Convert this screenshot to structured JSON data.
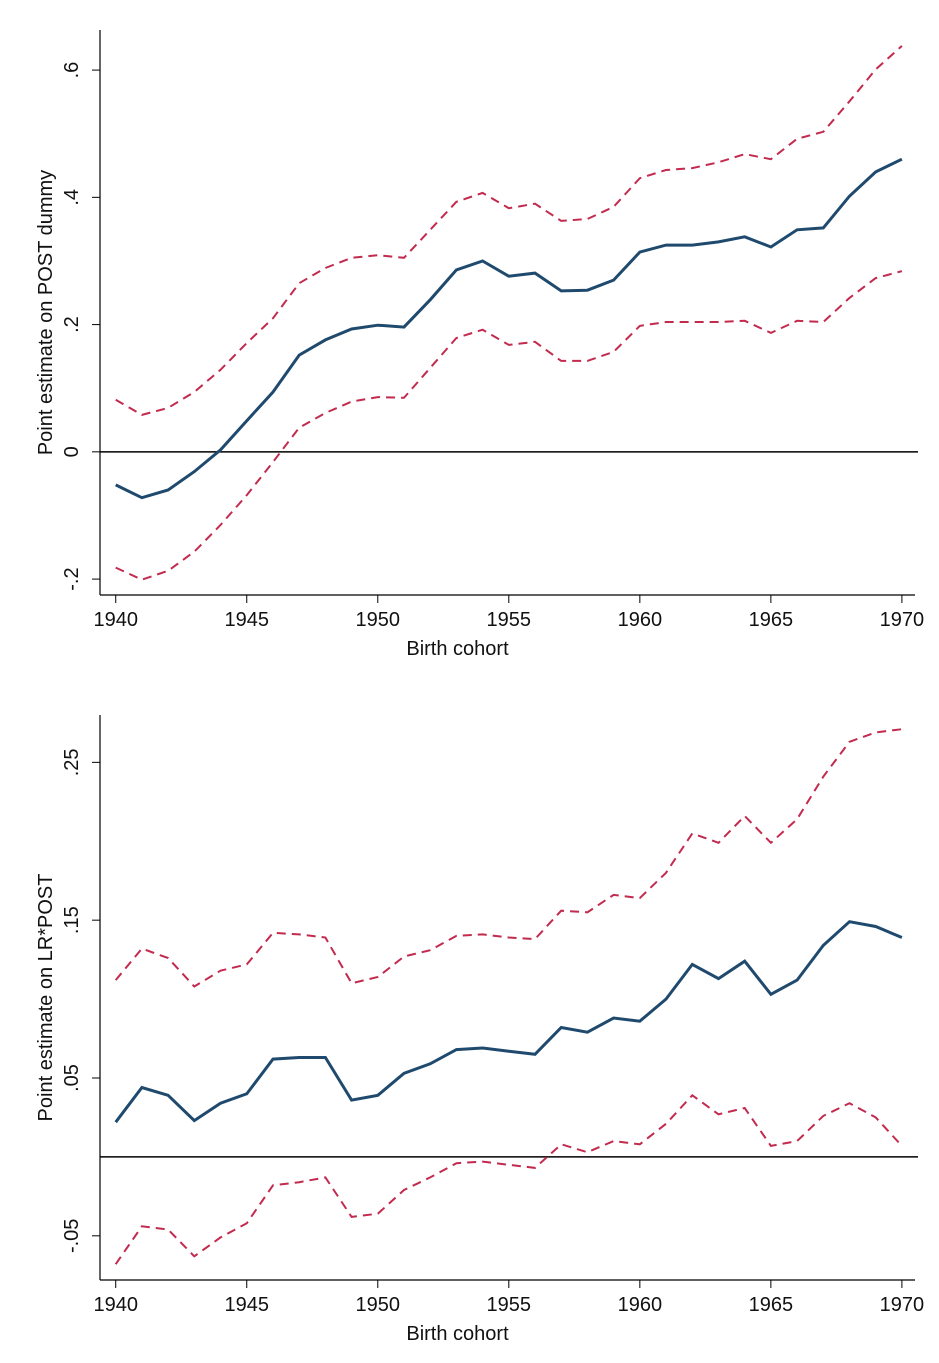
{
  "chart_data": [
    {
      "type": "line",
      "x": [
        1940,
        1941,
        1942,
        1943,
        1944,
        1945,
        1946,
        1947,
        1948,
        1949,
        1950,
        1951,
        1952,
        1953,
        1954,
        1955,
        1956,
        1957,
        1958,
        1959,
        1960,
        1961,
        1962,
        1963,
        1964,
        1965,
        1966,
        1967,
        1968,
        1969,
        1970
      ],
      "xlabel": "Birth cohort",
      "ylabel": "Point estimate on POST dummy",
      "xlim": [
        1939.4,
        1970.5
      ],
      "xticks": [
        1940,
        1945,
        1950,
        1955,
        1960,
        1965,
        1970
      ],
      "ylim": [
        -0.225,
        0.663
      ],
      "yticks": [
        {
          "value": -0.2,
          "label": "-.2"
        },
        0,
        {
          "value": 0.2,
          "label": ".2"
        },
        {
          "value": 0.4,
          "label": ".4"
        },
        {
          "value": 0.6,
          "label": ".6"
        }
      ],
      "reference_line": 0,
      "series": [
        {
          "color": "#1f4a6e",
          "style": "solid",
          "values": [
            -0.052,
            -0.072,
            -0.06,
            -0.031,
            0.003,
            0.049,
            0.094,
            0.152,
            0.176,
            0.193,
            0.199,
            0.196,
            0.239,
            0.286,
            0.3,
            0.276,
            0.281,
            0.253,
            0.254,
            0.27,
            0.314,
            0.325,
            0.325,
            0.33,
            0.338,
            0.322,
            0.349,
            0.352,
            0.402,
            0.44,
            0.46
          ]
        },
        {
          "color": "#c22a4e",
          "style": "dashed",
          "values": [
            0.082,
            0.058,
            0.069,
            0.094,
            0.129,
            0.171,
            0.21,
            0.265,
            0.289,
            0.305,
            0.309,
            0.305,
            0.349,
            0.393,
            0.407,
            0.383,
            0.39,
            0.363,
            0.366,
            0.385,
            0.43,
            0.443,
            0.446,
            0.455,
            0.468,
            0.46,
            0.492,
            0.503,
            0.551,
            0.601,
            0.638
          ]
        },
        {
          "color": "#c22a4e",
          "style": "dashed",
          "values": [
            -0.182,
            -0.201,
            -0.187,
            -0.157,
            -0.115,
            -0.068,
            -0.016,
            0.038,
            0.061,
            0.079,
            0.086,
            0.085,
            0.132,
            0.179,
            0.192,
            0.168,
            0.173,
            0.143,
            0.143,
            0.157,
            0.198,
            0.204,
            0.204,
            0.204,
            0.206,
            0.187,
            0.206,
            0.204,
            0.242,
            0.273,
            0.284
          ]
        }
      ]
    },
    {
      "type": "line",
      "x": [
        1940,
        1941,
        1942,
        1943,
        1944,
        1945,
        1946,
        1947,
        1948,
        1949,
        1950,
        1951,
        1952,
        1953,
        1954,
        1955,
        1956,
        1957,
        1958,
        1959,
        1960,
        1961,
        1962,
        1963,
        1964,
        1965,
        1966,
        1967,
        1968,
        1969,
        1970
      ],
      "xlabel": "Birth cohort",
      "ylabel": "Point estimate on LR*POST",
      "xlim": [
        1939.4,
        1970.5
      ],
      "xticks": [
        1940,
        1945,
        1950,
        1955,
        1960,
        1965,
        1970
      ],
      "ylim": [
        -0.078,
        0.28
      ],
      "yticks": [
        {
          "value": -0.05,
          "label": "-.05"
        },
        {
          "value": 0.05,
          "label": ".05"
        },
        {
          "value": 0.15,
          "label": ".15"
        },
        {
          "value": 0.25,
          "label": ".25"
        }
      ],
      "reference_line": 0,
      "series": [
        {
          "color": "#1f4a6e",
          "style": "solid",
          "values": [
            0.022,
            0.044,
            0.039,
            0.023,
            0.034,
            0.04,
            0.062,
            0.063,
            0.063,
            0.036,
            0.039,
            0.053,
            0.059,
            0.068,
            0.069,
            0.067,
            0.065,
            0.082,
            0.079,
            0.088,
            0.086,
            0.1,
            0.122,
            0.113,
            0.124,
            0.103,
            0.112,
            0.134,
            0.149,
            0.146,
            0.139
          ]
        },
        {
          "color": "#c22a4e",
          "style": "dashed",
          "values": [
            0.112,
            0.132,
            0.126,
            0.108,
            0.118,
            0.122,
            0.142,
            0.141,
            0.139,
            0.11,
            0.114,
            0.127,
            0.131,
            0.14,
            0.141,
            0.139,
            0.138,
            0.156,
            0.155,
            0.166,
            0.164,
            0.18,
            0.205,
            0.199,
            0.216,
            0.199,
            0.214,
            0.241,
            0.263,
            0.269,
            0.271
          ]
        },
        {
          "color": "#c22a4e",
          "style": "dashed",
          "values": [
            -0.068,
            -0.044,
            -0.046,
            -0.063,
            -0.051,
            -0.042,
            -0.018,
            -0.016,
            -0.013,
            -0.038,
            -0.036,
            -0.021,
            -0.013,
            -0.004,
            -0.003,
            -0.005,
            -0.007,
            0.008,
            0.003,
            0.01,
            0.008,
            0.021,
            0.039,
            0.027,
            0.031,
            0.007,
            0.01,
            0.026,
            0.034,
            0.025,
            0.007
          ]
        }
      ]
    }
  ]
}
